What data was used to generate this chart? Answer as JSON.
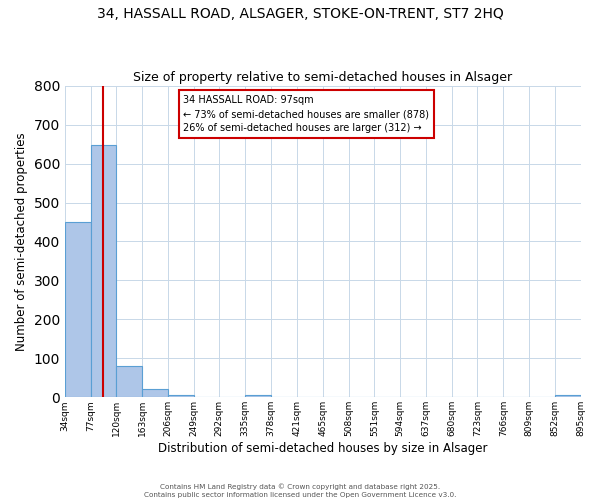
{
  "title1": "34, HASSALL ROAD, ALSAGER, STOKE-ON-TRENT, ST7 2HQ",
  "title2": "Size of property relative to semi-detached houses in Alsager",
  "xlabel": "Distribution of semi-detached houses by size in Alsager",
  "ylabel": "Number of semi-detached properties",
  "bar_edges": [
    34,
    77,
    120,
    163,
    206,
    249,
    292,
    335,
    378,
    421,
    465,
    508,
    551,
    594,
    637,
    680,
    723,
    766,
    809,
    852,
    895
  ],
  "bar_heights": [
    450,
    648,
    80,
    22,
    5,
    0,
    0,
    5,
    0,
    0,
    0,
    0,
    0,
    0,
    0,
    0,
    0,
    0,
    0,
    5
  ],
  "bar_color": "#aec6e8",
  "bar_edge_color": "#5a9fd4",
  "vline_x": 97,
  "vline_color": "#cc0000",
  "annotation_text": "34 HASSALL ROAD: 97sqm\n← 73% of semi-detached houses are smaller (878)\n26% of semi-detached houses are larger (312) →",
  "annotation_box_color": "#ffffff",
  "annotation_box_edge_color": "#cc0000",
  "ylim": [
    0,
    800
  ],
  "yticks": [
    0,
    100,
    200,
    300,
    400,
    500,
    600,
    700,
    800
  ],
  "footer1": "Contains HM Land Registry data © Crown copyright and database right 2025.",
  "footer2": "Contains public sector information licensed under the Open Government Licence v3.0.",
  "bg_color": "#ffffff",
  "grid_color": "#c8d8e8",
  "title1_fontsize": 10,
  "title2_fontsize": 9,
  "tick_labels": [
    "34sqm",
    "77sqm",
    "120sqm",
    "163sqm",
    "206sqm",
    "249sqm",
    "292sqm",
    "335sqm",
    "378sqm",
    "421sqm",
    "465sqm",
    "508sqm",
    "551sqm",
    "594sqm",
    "637sqm",
    "680sqm",
    "723sqm",
    "766sqm",
    "809sqm",
    "852sqm",
    "895sqm"
  ]
}
